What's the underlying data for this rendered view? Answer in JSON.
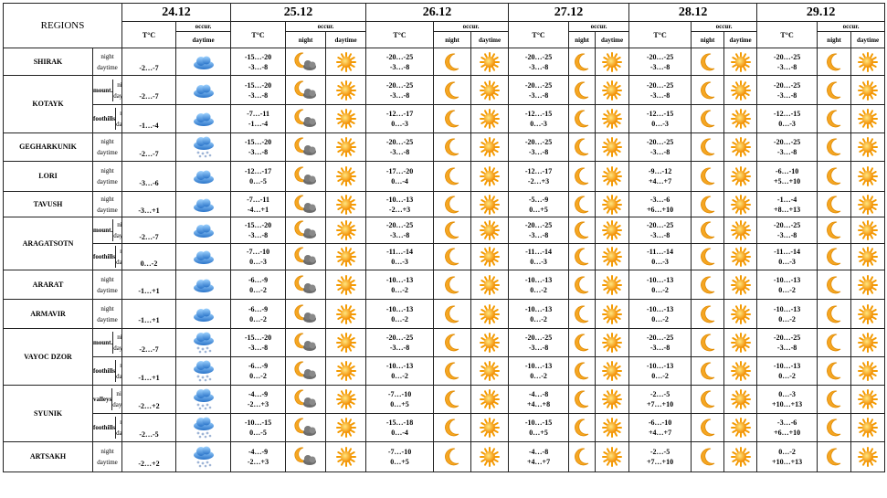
{
  "header": {
    "regions_label": "REGIONS",
    "temp_label": "T°C",
    "occur_label": "occur.",
    "night_label": "night",
    "daytime_label": "daytime",
    "dates": [
      "24.12",
      "25.12",
      "26.12",
      "27.12",
      "28.12",
      "29.12"
    ]
  },
  "rows": [
    {
      "region": "SHIRAK",
      "sub": "",
      "r": "-2…-7",
      "t": [
        [
          "-15…-20",
          "-3…-8"
        ],
        [
          "-20…-25",
          "-3…-8"
        ],
        [
          "-20…-25",
          "-3…-8"
        ],
        [
          "-20…-25",
          "-3…-8"
        ],
        [
          "-20…-25",
          "-3…-8"
        ]
      ],
      "c": "cloud",
      "n": "moon-cloud"
    },
    {
      "region": "KOTAYK",
      "sub": "mount.",
      "r": "-2…-7",
      "t": [
        [
          "-15…-20",
          "-3…-8"
        ],
        [
          "-20…-25",
          "-3…-8"
        ],
        [
          "-20…-25",
          "-3…-8"
        ],
        [
          "-20…-25",
          "-3…-8"
        ],
        [
          "-20…-25",
          "-3…-8"
        ]
      ],
      "c": "cloud",
      "n": "moon-cloud"
    },
    {
      "region": "",
      "sub": "foothills",
      "r": "-1…-4",
      "t": [
        [
          "-7…-11",
          "-1…-4"
        ],
        [
          "-12…-17",
          "0…-3"
        ],
        [
          "-12…-15",
          "0…-3"
        ],
        [
          "-12…-15",
          "0…-3"
        ],
        [
          "-12…-15",
          "0…-3"
        ]
      ],
      "c": "cloud",
      "n": "moon-cloud"
    },
    {
      "region": "GEGHARKUNIK",
      "sub": "",
      "r": "-2…-7",
      "t": [
        [
          "-15…-20",
          "-3…-8"
        ],
        [
          "-20…-25",
          "-3…-8"
        ],
        [
          "-20…-25",
          "-3…-8"
        ],
        [
          "-20…-25",
          "-3…-8"
        ],
        [
          "-20…-25",
          "-3…-8"
        ]
      ],
      "c": "snow",
      "n": "moon-cloud"
    },
    {
      "region": "LORI",
      "sub": "",
      "r": "-3…-6",
      "t": [
        [
          "-12…-17",
          "0…-5"
        ],
        [
          "-17…-20",
          "0…-4"
        ],
        [
          "-12…-17",
          "-2…+3"
        ],
        [
          "-9…-12",
          "+4…+7"
        ],
        [
          "-6…-10",
          "+5…+10"
        ]
      ],
      "c": "cloud",
      "n": "moon-cloud"
    },
    {
      "region": "TAVUSH",
      "sub": "",
      "r": "-3…+1",
      "t": [
        [
          "-7…-11",
          "-4…+1"
        ],
        [
          "-10…-13",
          "-2…+3"
        ],
        [
          "-5…-9",
          "0…+5"
        ],
        [
          "-3…-6",
          "+6…+10"
        ],
        [
          "-1…-4",
          "+8…+13"
        ]
      ],
      "c": "cloud",
      "n": "moon-cloud"
    },
    {
      "region": "ARAGATSOTN",
      "sub": "mount.",
      "r": "-2…-7",
      "t": [
        [
          "-15…-20",
          "-3…-8"
        ],
        [
          "-20…-25",
          "-3…-8"
        ],
        [
          "-20…-25",
          "-3…-8"
        ],
        [
          "-20…-25",
          "-3…-8"
        ],
        [
          "-20…-25",
          "-3…-8"
        ]
      ],
      "c": "cloud",
      "n": "moon-cloud"
    },
    {
      "region": "",
      "sub": "foothills",
      "r": "0…-2",
      "t": [
        [
          "-7…-10",
          "0…-3"
        ],
        [
          "-11…-14",
          "0…-3"
        ],
        [
          "-11…-14",
          "0…-3"
        ],
        [
          "-11…-14",
          "0…-3"
        ],
        [
          "-11…-14",
          "0…-3"
        ]
      ],
      "c": "cloud",
      "n": "moon-cloud"
    },
    {
      "region": "ARARAT",
      "sub": "",
      "r": "-1…+1",
      "t": [
        [
          "-6…-9",
          "0…-2"
        ],
        [
          "-10…-13",
          "0…-2"
        ],
        [
          "-10…-13",
          "0…-2"
        ],
        [
          "-10…-13",
          "0…-2"
        ],
        [
          "-10…-13",
          "0…-2"
        ]
      ],
      "c": "cloud",
      "n": "moon-cloud"
    },
    {
      "region": "ARMAVIR",
      "sub": "",
      "r": "-1…+1",
      "t": [
        [
          "-6…-9",
          "0…-2"
        ],
        [
          "-10…-13",
          "0…-2"
        ],
        [
          "-10…-13",
          "0…-2"
        ],
        [
          "-10…-13",
          "0…-2"
        ],
        [
          "-10…-13",
          "0…-2"
        ]
      ],
      "c": "cloud",
      "n": "moon-cloud"
    },
    {
      "region": "VAYOC DZOR",
      "sub": "mount.",
      "r": "-2…-7",
      "t": [
        [
          "-15…-20",
          "-3…-8"
        ],
        [
          "-20…-25",
          "-3…-8"
        ],
        [
          "-20…-25",
          "-3…-8"
        ],
        [
          "-20…-25",
          "-3…-8"
        ],
        [
          "-20…-25",
          "-3…-8"
        ]
      ],
      "c": "snow",
      "n": "moon-cloud"
    },
    {
      "region": "",
      "sub": "foothills",
      "r": "-1…+1",
      "t": [
        [
          "-6…-9",
          "0…-2"
        ],
        [
          "-10…-13",
          "0…-2"
        ],
        [
          "-10…-13",
          "0…-2"
        ],
        [
          "-10…-13",
          "0…-2"
        ],
        [
          "-10…-13",
          "0…-2"
        ]
      ],
      "c": "snow",
      "n": "moon-cloud"
    },
    {
      "region": "SYUNIK",
      "sub": "valleys",
      "r": "-2…+2",
      "t": [
        [
          "-4…-9",
          "-2…+3"
        ],
        [
          "-7…-10",
          "0…+5"
        ],
        [
          "-4…-8",
          "+4…+8"
        ],
        [
          "-2…-5",
          "+7…+10"
        ],
        [
          "0…-3",
          "+10…+13"
        ]
      ],
      "c": "snow",
      "n": "moon-cloud"
    },
    {
      "region": "",
      "sub": "foothills",
      "r": "-2…-5",
      "t": [
        [
          "-10…-15",
          "0…-5"
        ],
        [
          "-15…-18",
          "0…-4"
        ],
        [
          "-10…-15",
          "0…+5"
        ],
        [
          "-6…-10",
          "+4…+7"
        ],
        [
          "-3…-6",
          "+6…+10"
        ]
      ],
      "c": "snow",
      "n": "moon-cloud"
    },
    {
      "region": "ARTSAKH",
      "sub": "",
      "r": "-2…+2",
      "t": [
        [
          "-4…-9",
          "-2…+3"
        ],
        [
          "-7…-10",
          "0…+5"
        ],
        [
          "-4…-8",
          "+4…+7"
        ],
        [
          "-2…-5",
          "+7…+10"
        ],
        [
          "0…-2",
          "+10…+13"
        ]
      ],
      "c": "snow",
      "n": "moon-cloud"
    }
  ]
}
